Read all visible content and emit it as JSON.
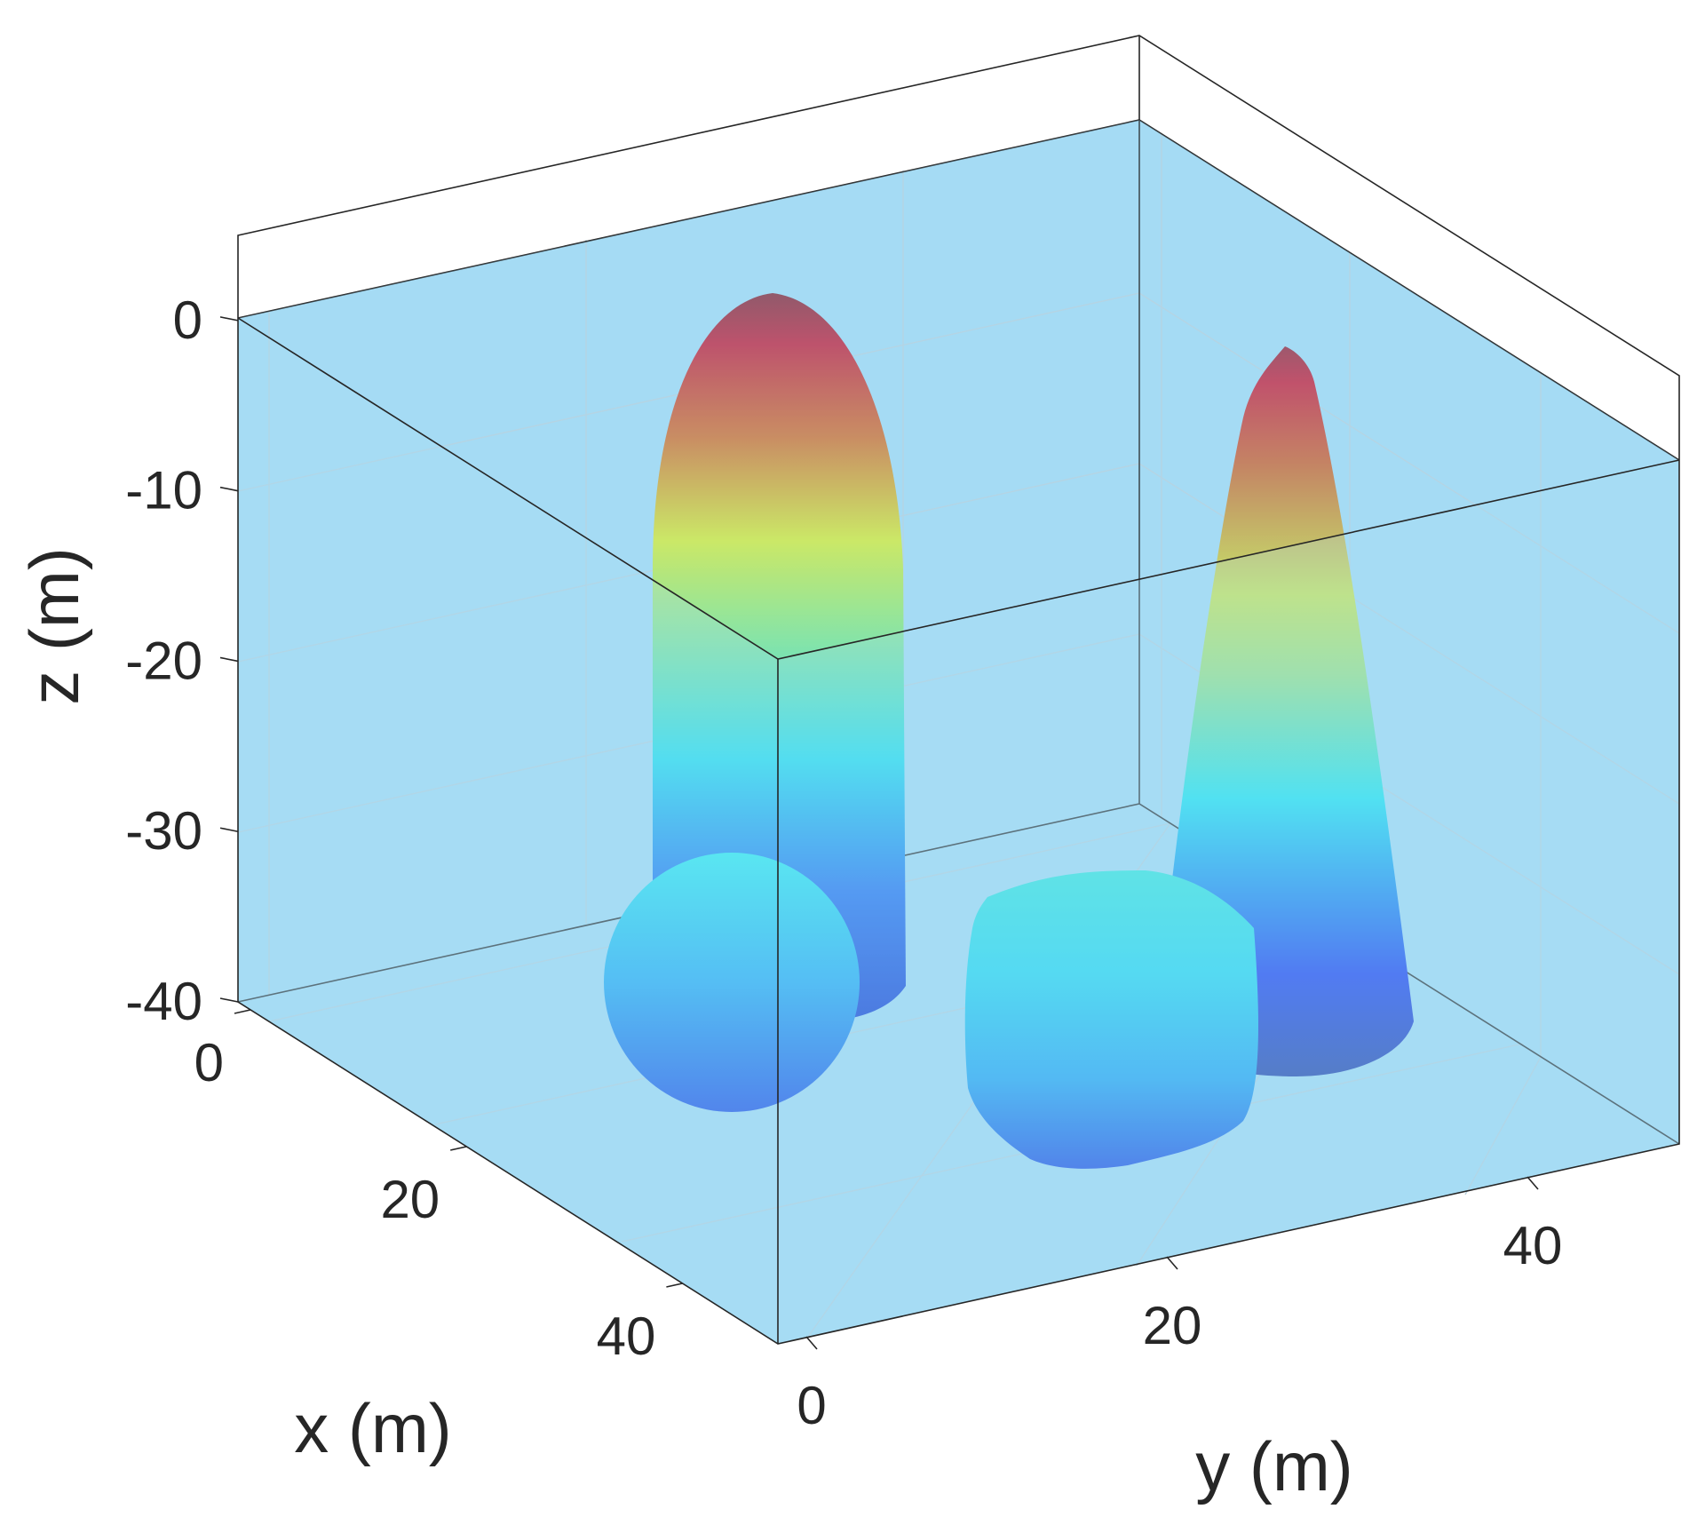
{
  "chart_data": {
    "type": "3d-surface",
    "xlabel": "x (m)",
    "ylabel": "y (m)",
    "zlabel": "z (m)",
    "xlim": [
      0,
      50
    ],
    "ylim": [
      0,
      50
    ],
    "zlim": [
      -40,
      5
    ],
    "x_ticks": [
      "0",
      "20",
      "40"
    ],
    "y_ticks": [
      "0",
      "20",
      "40"
    ],
    "z_ticks": [
      "0",
      "-10",
      "-20",
      "-30",
      "-40"
    ],
    "x_tick_values": [
      0,
      20,
      40
    ],
    "y_tick_values": [
      0,
      20,
      40
    ],
    "z_tick_values": [
      0,
      -10,
      -20,
      -30,
      -40
    ],
    "grid": true,
    "colormap": "jet",
    "volume_fill": "#a6dcf4",
    "objects": [
      {
        "shape": "capped-cylinder",
        "center_x": 10,
        "center_y": 10,
        "radius": 7,
        "z_bottom": -40,
        "z_top": -1
      },
      {
        "shape": "sphere",
        "center_x": 30,
        "center_y": 5,
        "center_z": -33,
        "radius": 7
      },
      {
        "shape": "rounded-cube",
        "center_x": 30,
        "center_y": 25,
        "center_z": -33,
        "half_size": 7
      },
      {
        "shape": "cone",
        "center_x": 15,
        "center_y": 42,
        "base_radius": 7,
        "z_bottom": -40,
        "z_top": -3
      }
    ]
  }
}
